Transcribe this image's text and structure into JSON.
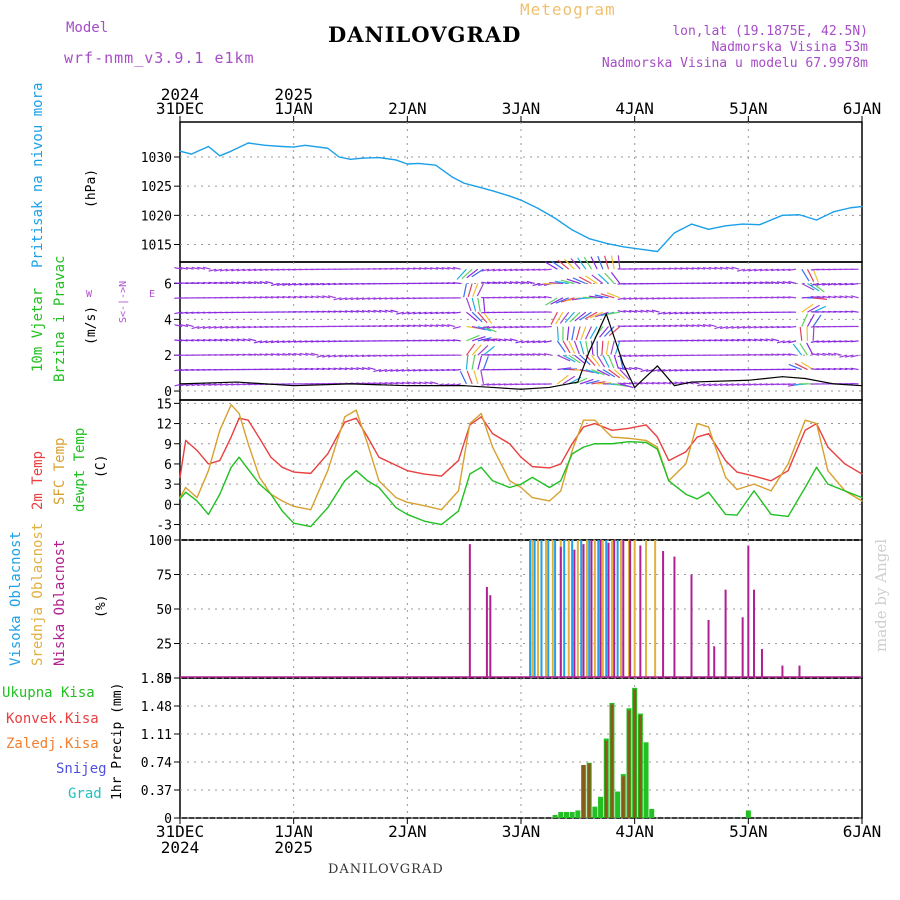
{
  "header": {
    "model_label": "Model",
    "model_name": "wrf-nmm_v3.9.1 e1km",
    "title": "DANILOVGRAD",
    "subtitle": "Meteogram",
    "location_line": "lon,lat (19.1875E, 42.5N)",
    "elevation_line": "Nadmorska Visina 53m",
    "model_elevation_line": "Nadmorska Visina u modelu 67.9978m"
  },
  "footer": {
    "station": "DANILOVGRAD",
    "credit": "made by Angel"
  },
  "colors": {
    "pressure": "#1ba0e8",
    "wind_label": "#22c022",
    "wind_label2": "#22c022",
    "temp2m": "#e84040",
    "sfc_temp": "#d8a030",
    "dewpt": "#20c020",
    "high_cloud": "#20a0e8",
    "mid_cloud": "#e0b040",
    "low_cloud": "#b02090",
    "total_precip": "#22c022",
    "convective": "#e84040",
    "freezing": "#f08030",
    "snow": "#5050e0",
    "hail": "#20c0c0",
    "wind_arrows": "#8a2be2"
  },
  "time_axis": {
    "top_labels": [
      {
        "day": "31DEC",
        "year": "2024"
      },
      {
        "day": "1JAN",
        "year": "2025"
      },
      {
        "day": "2JAN",
        "year": ""
      },
      {
        "day": "3JAN",
        "year": ""
      },
      {
        "day": "4JAN",
        "year": ""
      },
      {
        "day": "5JAN",
        "year": ""
      },
      {
        "day": "6JAN",
        "year": ""
      }
    ]
  },
  "panel_labels": {
    "pressure": {
      "name": "Pritisak na nivou mora",
      "unit": "(hPa)"
    },
    "wind": {
      "name1": "10m Vjetar",
      "name2": "Brzina i Pravac",
      "unit": "(m/s)",
      "compass_ns": "S<-|->N",
      "compass_w": "W",
      "compass_e": "E"
    },
    "temp": {
      "name1": "2m Temp",
      "name2": "SFC Temp",
      "name3": "dewpt Temp",
      "unit": "(C)"
    },
    "cloud": {
      "name1": "Visoka Oblacnost",
      "name2": "Srednja Oblacnost",
      "name3": "Niska Oblacnost",
      "unit": "(%)"
    },
    "precip": {
      "legend": [
        "Ukupna Kisa",
        "Konvek.Kisa",
        "Zaledj.Kisa",
        "Snijeg",
        "Grad"
      ],
      "unit": "1hr Precip (mm)"
    }
  },
  "chart_data": [
    {
      "type": "line",
      "panel": "pressure",
      "title": "",
      "ylabel": "(hPa)",
      "ylim": [
        1012,
        1036
      ],
      "yticks": [
        1015,
        1020,
        1025,
        1030
      ],
      "x_days": [
        0,
        0.1,
        0.25,
        0.35,
        0.45,
        0.6,
        0.75,
        0.9,
        1.0,
        1.1,
        1.3,
        1.4,
        1.5,
        1.6,
        1.75,
        1.9,
        2.0,
        2.1,
        2.25,
        2.4,
        2.5,
        2.6,
        2.75,
        2.9,
        3.0,
        3.15,
        3.3,
        3.45,
        3.6,
        3.75,
        3.9,
        4.05,
        4.2,
        4.35,
        4.5,
        4.65,
        4.8,
        4.95,
        5.1,
        5.3,
        5.45,
        5.6,
        5.75,
        5.9,
        6.0
      ],
      "series": [
        {
          "values": [
            1031,
            1030.5,
            1031.8,
            1030.2,
            1031,
            1032.4,
            1032,
            1031.8,
            1031.7,
            1032,
            1031.5,
            1030,
            1029.6,
            1029.8,
            1029.9,
            1029.5,
            1028.8,
            1028.9,
            1028.6,
            1026.5,
            1025.5,
            1025,
            1024.2,
            1023.3,
            1022.6,
            1021.2,
            1019.5,
            1017.5,
            1016,
            1015.2,
            1014.6,
            1014.2,
            1013.8,
            1017,
            1018.5,
            1017.6,
            1018.2,
            1018.5,
            1018.4,
            1020,
            1020.1,
            1019.2,
            1020.6,
            1021.3,
            1021.5
          ]
        }
      ]
    },
    {
      "type": "scatter",
      "panel": "wind",
      "ylabel": "(m/s)",
      "ylim": [
        -0.5,
        7.2
      ],
      "yticks": [
        0,
        2,
        4,
        6
      ],
      "x_days": [
        0,
        0.5,
        1.0,
        1.5,
        2.0,
        2.5,
        2.75,
        3.0,
        3.25,
        3.5,
        3.6,
        3.75,
        3.9,
        4.0,
        4.2,
        4.35,
        4.5,
        5.0,
        5.3,
        5.5,
        5.75,
        6.0
      ],
      "series": [
        {
          "name": "speed",
          "values": [
            0.4,
            0.5,
            0.3,
            0.4,
            0.3,
            0.3,
            0.2,
            0.1,
            0.2,
            0.5,
            2.2,
            4.3,
            1.5,
            0.2,
            1.4,
            0.3,
            0.5,
            0.6,
            0.8,
            0.7,
            0.4,
            0.3
          ]
        }
      ]
    },
    {
      "type": "line",
      "panel": "temp",
      "ylabel": "(C)",
      "ylim": [
        -5.3,
        15.5
      ],
      "yticks": [
        -3,
        0,
        3,
        6,
        9,
        12,
        15
      ],
      "x_days": [
        0,
        0.05,
        0.15,
        0.25,
        0.35,
        0.45,
        0.52,
        0.6,
        0.7,
        0.8,
        0.9,
        1.0,
        1.15,
        1.3,
        1.45,
        1.55,
        1.65,
        1.75,
        1.9,
        2.0,
        2.15,
        2.3,
        2.45,
        2.55,
        2.65,
        2.75,
        2.9,
        3.0,
        3.1,
        3.25,
        3.35,
        3.45,
        3.55,
        3.65,
        3.8,
        3.95,
        4.1,
        4.2,
        4.3,
        4.45,
        4.55,
        4.65,
        4.8,
        4.9,
        5.05,
        5.2,
        5.35,
        5.5,
        5.6,
        5.7,
        5.85,
        6.0
      ],
      "series": [
        {
          "name": "2m Temp",
          "values": [
            4,
            9.5,
            8,
            6,
            6.5,
            10,
            12.8,
            12.5,
            9.8,
            7,
            5.5,
            4.8,
            4.6,
            7.5,
            12.2,
            12.8,
            10,
            7,
            5.8,
            5,
            4.5,
            4.2,
            6.5,
            11.8,
            13,
            10.5,
            9,
            7,
            5.6,
            5.4,
            6,
            9,
            11.5,
            12,
            11,
            11.3,
            11.8,
            10,
            6.5,
            7.8,
            10,
            10.5,
            6.5,
            4.8,
            4.2,
            3.5,
            5,
            11,
            12,
            8.5,
            6,
            4.5
          ]
        },
        {
          "name": "SFC Temp",
          "values": [
            1,
            2.5,
            1,
            5,
            11,
            14.8,
            13.5,
            9,
            4,
            1.5,
            0.5,
            -0.3,
            -0.8,
            5,
            13,
            14,
            9,
            3.5,
            1,
            0.3,
            -0.2,
            -0.8,
            2,
            12,
            13.5,
            8.5,
            3.5,
            2.5,
            1,
            0.5,
            2,
            8,
            12.5,
            12.5,
            10,
            9.8,
            9.5,
            8.5,
            3.5,
            6,
            12,
            11.5,
            4,
            2.2,
            3,
            2,
            6,
            12.5,
            12,
            5,
            2,
            0.5
          ]
        },
        {
          "name": "dewpt Temp",
          "values": [
            0.8,
            1.8,
            0.5,
            -1.5,
            1.5,
            5.5,
            7,
            5.2,
            3,
            1.5,
            -1,
            -2.8,
            -3.3,
            -0.5,
            3.5,
            5,
            3.5,
            2.5,
            -0.5,
            -1.5,
            -2.5,
            -3,
            -1,
            4.5,
            5.5,
            3.5,
            2.5,
            3,
            4,
            2.5,
            3.5,
            7.5,
            8.5,
            9,
            9,
            9.3,
            9.2,
            8.2,
            3.5,
            1.5,
            0.8,
            1.8,
            -1.5,
            -1.6,
            2,
            -1.5,
            -1.8,
            2.5,
            5.5,
            3,
            2,
            1
          ]
        }
      ]
    },
    {
      "type": "bar",
      "panel": "cloud",
      "ylabel": "(%)",
      "ylim": [
        0,
        100
      ],
      "yticks": [
        0,
        25,
        50,
        75,
        100
      ],
      "series": [
        {
          "name": "Niska Oblacnost",
          "x_days": [
            2.55,
            2.7,
            2.73,
            3.35,
            3.47,
            3.55,
            3.62,
            3.7,
            3.77,
            3.82,
            3.9,
            3.96,
            4.05,
            4.25,
            4.35,
            4.5,
            4.65,
            4.7,
            4.8,
            4.95,
            5.0,
            5.05,
            5.12,
            5.3,
            5.45
          ],
          "values": [
            97,
            66,
            60,
            95,
            93,
            97,
            100,
            100,
            98,
            100,
            100,
            100,
            96,
            92,
            88,
            75,
            42,
            23,
            64,
            44,
            96,
            64,
            21,
            9,
            9
          ]
        },
        {
          "name": "Srednja Oblacnost",
          "x_days": [
            3.1,
            3.15,
            3.22,
            3.28,
            3.35,
            3.42,
            3.5,
            3.58,
            3.65,
            3.72,
            3.8,
            3.88,
            3.95,
            4.0,
            4.1,
            4.18
          ],
          "values": [
            100,
            100,
            100,
            100,
            100,
            100,
            100,
            100,
            100,
            100,
            100,
            100,
            100,
            100,
            100,
            100
          ]
        },
        {
          "name": "Visoka Oblacnost",
          "x_days": [
            3.08,
            3.12,
            3.18,
            3.24,
            3.3,
            3.38,
            3.45,
            3.53,
            3.6,
            3.68,
            3.75,
            3.85
          ],
          "values": [
            100,
            100,
            100,
            100,
            100,
            100,
            100,
            100,
            100,
            100,
            100,
            100
          ]
        }
      ]
    },
    {
      "type": "bar",
      "panel": "precip",
      "ylabel": "1hr Precip (mm)",
      "ylim": [
        0,
        1.85
      ],
      "yticks": [
        0,
        0.37,
        0.74,
        1.11,
        1.48,
        1.85
      ],
      "series": [
        {
          "name": "Ukupna Kisa",
          "x_days": [
            3.3,
            3.35,
            3.4,
            3.45,
            3.5,
            3.55,
            3.6,
            3.65,
            3.7,
            3.75,
            3.8,
            3.85,
            3.9,
            3.95,
            4.0,
            4.05,
            4.1,
            4.15,
            5.0
          ],
          "values": [
            0.04,
            0.08,
            0.08,
            0.08,
            0.1,
            0.7,
            0.73,
            0.15,
            0.28,
            1.05,
            1.52,
            0.35,
            0.58,
            1.45,
            1.72,
            1.38,
            1.0,
            0.12,
            0.1
          ]
        },
        {
          "name": "Konvek.Kisa",
          "x_days": [
            3.55,
            3.6,
            3.75,
            3.8,
            3.9,
            3.95,
            4.0,
            4.05
          ],
          "values": [
            0.7,
            0.72,
            1.02,
            1.5,
            0.55,
            1.42,
            1.7,
            1.36
          ]
        }
      ]
    }
  ]
}
